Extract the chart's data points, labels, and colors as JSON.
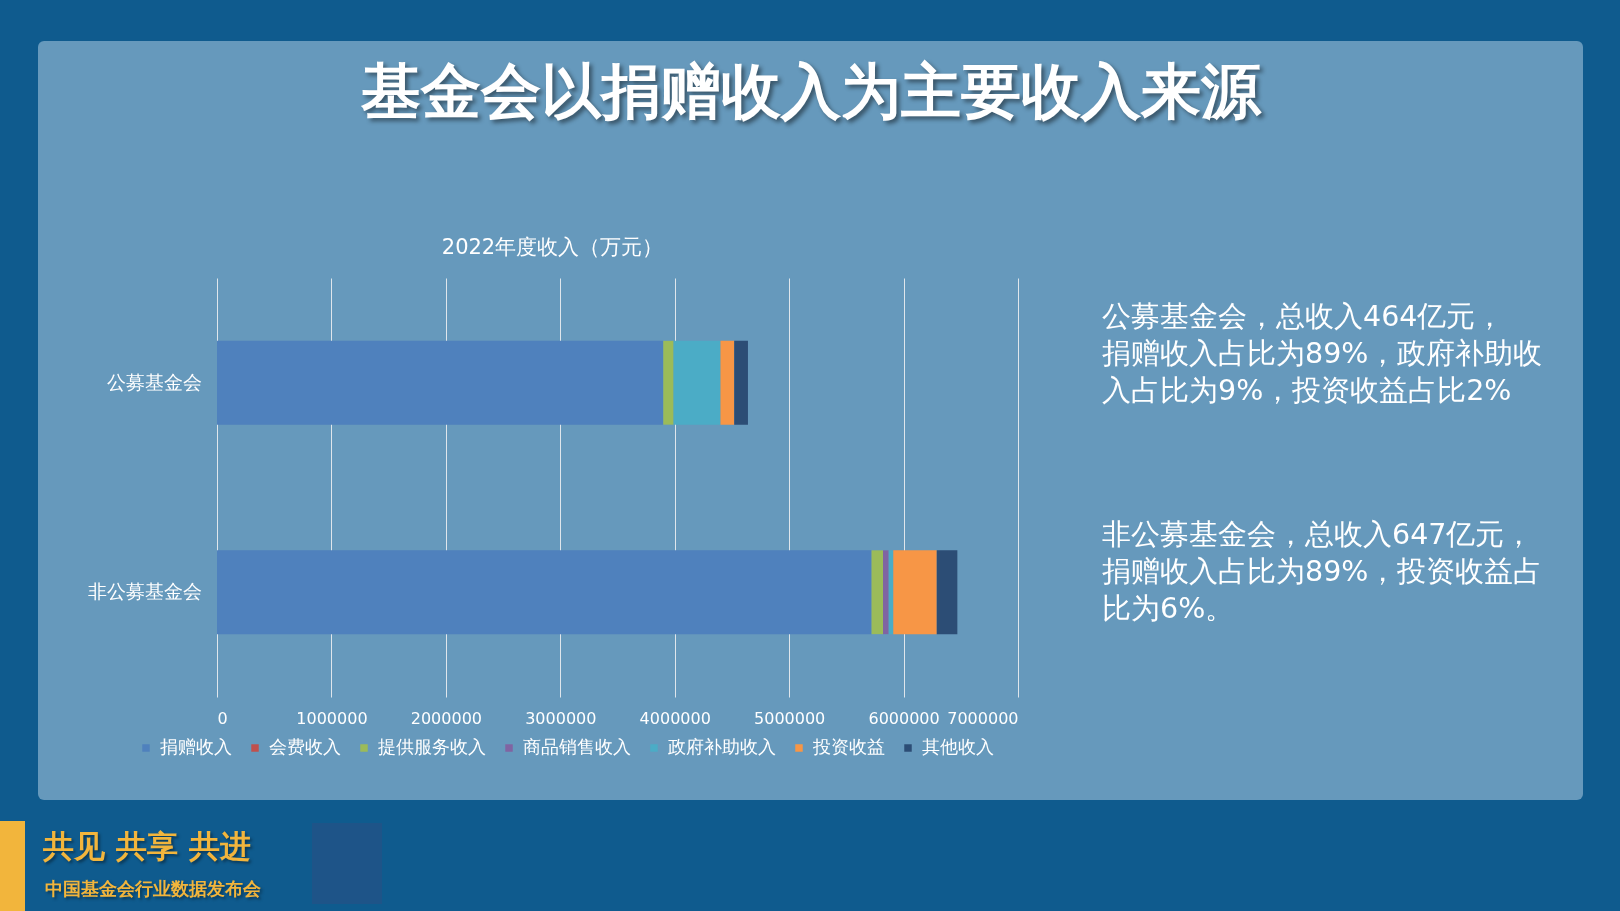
{
  "chart_data": {
    "type": "bar",
    "orientation": "horizontal",
    "stacked": true,
    "title": "基金会以捐赠收入为主要收入来源",
    "subtitle": "2022年度收入（万元）",
    "categories": [
      "公募基金会",
      "非公募基金会"
    ],
    "series": [
      {
        "name": "捐赠收入",
        "color": "#4f81bd",
        "values": [
          3900000,
          5720000
        ]
      },
      {
        "name": "会费收入",
        "color": "#c0504d",
        "values": [
          null,
          null
        ]
      },
      {
        "name": "提供服务收入",
        "color": "#9bbb59",
        "values": [
          90000,
          100000
        ]
      },
      {
        "name": "商品销售收入",
        "color": "#8064a2",
        "values": [
          null,
          50000
        ]
      },
      {
        "name": "政府补助收入",
        "color": "#4bacc6",
        "values": [
          410000,
          40000
        ]
      },
      {
        "name": "投资收益",
        "color": "#f79646",
        "values": [
          120000,
          380000
        ]
      },
      {
        "name": "其他收入",
        "color": "#2c4d75",
        "values": [
          120000,
          180000
        ]
      }
    ],
    "xlim": [
      0,
      7000000
    ],
    "xticks": [
      0,
      1000000,
      2000000,
      3000000,
      4000000,
      5000000,
      6000000,
      7000000
    ],
    "grid": "x",
    "legend": "bottom",
    "annotations": [
      "公募基金会，总收入464亿元，",
      "捐赠收入占比为89%，政府补助收入占比为9%，投资收益占比2%",
      "非公募基金会，总收入647亿元，捐赠收入占比为89%，投资收益占比为6%。",
      "共见 共享 共进",
      "中国基金会行业数据发布会"
    ]
  }
}
